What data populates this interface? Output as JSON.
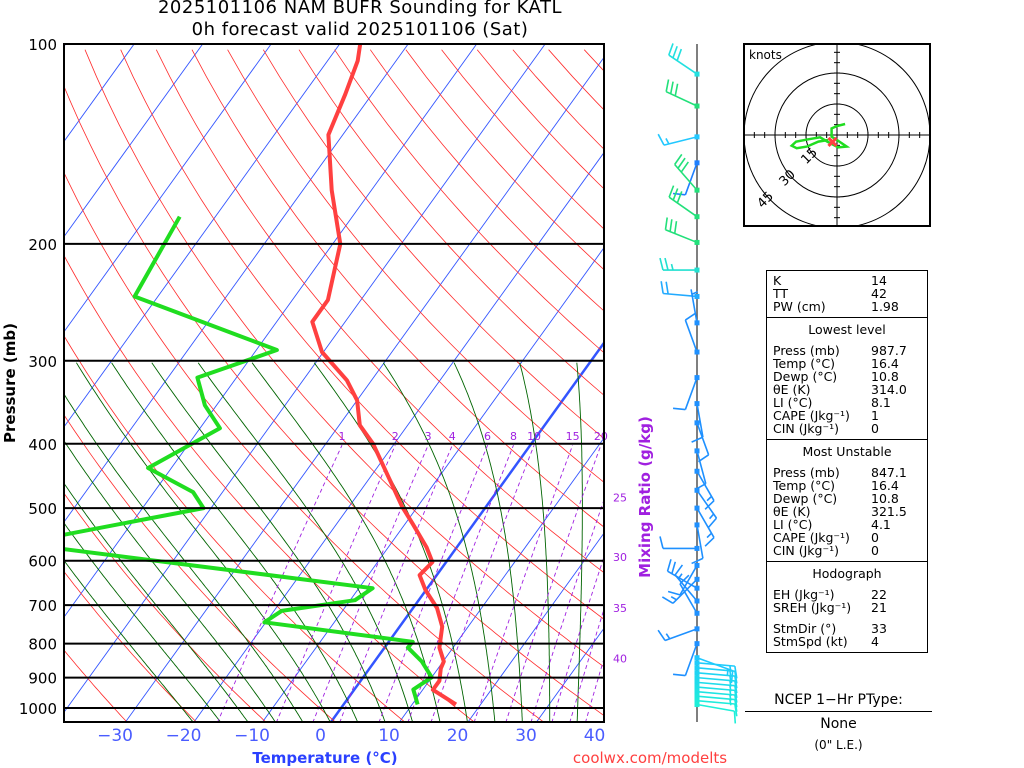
{
  "header": {
    "title_line1": "2025101106 NAM BUFR Sounding for KATL",
    "title_line2": "0h forecast valid 2025101106 (Sat)"
  },
  "colors": {
    "temperature": "#ff4040",
    "dewpoint": "#20dd20",
    "isotherm": "#3355ff",
    "dry_adiabat": "#ff2a2a",
    "moist_adiabat": "#006400",
    "mixing_ratio": "#a020e0",
    "credit": "#ff4040"
  },
  "chart_data": {
    "type": "skew-t",
    "title": "2025101106 NAM BUFR Sounding for KATL",
    "ylabel": "Pressure (mb)",
    "xlabel": "Temperature (°C)",
    "secondary_label": "Mixing Ratio (g/kg)",
    "pressure_ticks": [
      "100",
      "200",
      "300",
      "400",
      "500",
      "600",
      "700",
      "800",
      "900",
      "1000"
    ],
    "pressure_tick_values": [
      100,
      200,
      300,
      400,
      500,
      600,
      700,
      800,
      900,
      1000
    ],
    "temperature_ticks": [
      "−30",
      "−20",
      "−10",
      "0",
      "10",
      "20",
      "30",
      "40"
    ],
    "temperature_tick_values": [
      -30,
      -20,
      -10,
      0,
      10,
      20,
      30,
      40
    ],
    "pressure_range": [
      100,
      1050
    ],
    "mixing_ratio_lines": [
      "1",
      "2",
      "3",
      "4",
      "6",
      "8",
      "10",
      "15",
      "20",
      "25",
      "30",
      "35",
      "40"
    ],
    "temperature_profile": [
      [
        987.7,
        16.4
      ],
      [
        939,
        11.5
      ],
      [
        910,
        11.5
      ],
      [
        872,
        10.4
      ],
      [
        851,
        10.1
      ],
      [
        811,
        8.0
      ],
      [
        754,
        6.2
      ],
      [
        707,
        3.5
      ],
      [
        664,
        -0.1
      ],
      [
        631,
        -2.5
      ],
      [
        603,
        -2.0
      ],
      [
        573,
        -4.4
      ],
      [
        528,
        -8.9
      ],
      [
        498,
        -12.2
      ],
      [
        454,
        -16.8
      ],
      [
        400,
        -23.1
      ],
      [
        375,
        -27.0
      ],
      [
        344,
        -30.0
      ],
      [
        321,
        -33.6
      ],
      [
        291,
        -40.2
      ],
      [
        262,
        -44.8
      ],
      [
        243,
        -44.8
      ],
      [
        200,
        -48.9
      ],
      [
        166,
        -55.8
      ],
      [
        137,
        -62.1
      ],
      [
        119,
        -63.9
      ],
      [
        106,
        -65.6
      ],
      [
        100,
        -67.0
      ]
    ],
    "dewpoint_profile": [
      [
        987.7,
        10.8
      ],
      [
        958,
        9.5
      ],
      [
        938,
        8.6
      ],
      [
        899,
        10.0
      ],
      [
        851,
        6.9
      ],
      [
        811,
        3.4
      ],
      [
        795,
        3.5
      ],
      [
        743,
        -20.2
      ],
      [
        714,
        -18.9
      ],
      [
        688,
        -9.3
      ],
      [
        660,
        -8.0
      ],
      [
        572,
        -60
      ],
      [
        558,
        -62
      ],
      [
        500,
        -41.1
      ],
      [
        473,
        -44.3
      ],
      [
        435,
        -53.4
      ],
      [
        379,
        -47.1
      ],
      [
        350,
        -51.7
      ],
      [
        318,
        -55.7
      ],
      [
        289,
        -47.0
      ],
      [
        240,
        -73.4
      ],
      [
        182,
        -75.2
      ]
    ],
    "winds": [
      [
        111,
        304,
        30
      ],
      [
        124,
        295,
        30
      ],
      [
        138,
        256,
        15
      ],
      [
        151,
        200,
        10
      ],
      [
        166,
        319,
        30
      ],
      [
        182,
        305,
        30
      ],
      [
        199,
        292,
        30
      ],
      [
        219,
        270,
        25
      ],
      [
        240,
        275,
        20
      ],
      [
        263,
        350,
        5
      ],
      [
        291,
        340,
        10
      ],
      [
        318,
        200,
        10
      ],
      [
        348,
        170,
        10
      ],
      [
        372,
        160,
        10
      ],
      [
        410,
        165,
        10
      ],
      [
        440,
        150,
        15
      ],
      [
        470,
        145,
        15
      ],
      [
        500,
        150,
        15
      ],
      [
        530,
        170,
        10
      ],
      [
        575,
        270,
        10
      ],
      [
        610,
        210,
        10
      ],
      [
        640,
        225,
        15
      ],
      [
        660,
        300,
        20
      ],
      [
        690,
        320,
        15
      ],
      [
        720,
        330,
        10
      ],
      [
        760,
        250,
        15
      ],
      [
        800,
        200,
        10
      ],
      [
        840,
        110,
        15
      ],
      [
        855,
        95,
        15
      ],
      [
        870,
        95,
        15
      ],
      [
        885,
        95,
        15
      ],
      [
        900,
        95,
        15
      ],
      [
        915,
        95,
        15
      ],
      [
        930,
        95,
        15
      ],
      [
        945,
        95,
        15
      ],
      [
        960,
        95,
        15
      ],
      [
        975,
        95,
        10
      ],
      [
        988,
        100,
        10
      ]
    ],
    "hodograph": {
      "label": "knots",
      "ring_labels": [
        "15",
        "30",
        "45"
      ],
      "ring_values": [
        15,
        30,
        45
      ],
      "uv": [
        [
          3.9,
          5.3
        ],
        [
          0,
          4.3
        ],
        [
          -2.6,
          3.2
        ],
        [
          -2.6,
          -0.8
        ],
        [
          0,
          -2.4
        ],
        [
          4.7,
          -5.6
        ],
        [
          0.6,
          -6
        ],
        [
          -4.7,
          -3.2
        ],
        [
          -8.2,
          -1.1
        ],
        [
          -13.9,
          -2.1
        ],
        [
          -19.8,
          -3.2
        ],
        [
          -21.9,
          -5.2
        ],
        [
          -19.5,
          -6.4
        ],
        [
          -14.6,
          -5.6
        ],
        [
          -9,
          -3.2
        ],
        [
          -4.2,
          -2.4
        ]
      ],
      "storm_motion": {
        "dir": 33,
        "speed": 4
      }
    }
  },
  "stats": {
    "indices": [
      {
        "label": "K",
        "value": "14"
      },
      {
        "label": "TT",
        "value": "42"
      },
      {
        "label": "PW (cm)",
        "value": "1.98"
      }
    ],
    "lowest": {
      "title": "Lowest level",
      "rows": [
        {
          "label": "Press (mb)",
          "value": "987.7"
        },
        {
          "label": "Temp (°C)",
          "value": "16.4"
        },
        {
          "label": "Dewp (°C)",
          "value": "10.8"
        },
        {
          "label": "θE (K)",
          "value": "314.0"
        },
        {
          "label": "LI (°C)",
          "value": "8.1"
        },
        {
          "label": "CAPE (Jkg⁻¹)",
          "value": "1"
        },
        {
          "label": "CIN (Jkg⁻¹)",
          "value": "0"
        }
      ]
    },
    "unstable": {
      "title": "Most Unstable",
      "rows": [
        {
          "label": "Press (mb)",
          "value": "847.1"
        },
        {
          "label": "Temp (°C)",
          "value": "16.4"
        },
        {
          "label": "Dewp (°C)",
          "value": "10.8"
        },
        {
          "label": "θE (K)",
          "value": "321.5"
        },
        {
          "label": "LI (°C)",
          "value": "4.1"
        },
        {
          "label": "CAPE (Jkg⁻¹)",
          "value": "0"
        },
        {
          "label": "CIN (Jkg⁻¹)",
          "value": "0"
        }
      ]
    },
    "hodo": {
      "title": "Hodograph",
      "rows": [
        {
          "label": "EH (Jkg⁻¹)",
          "value": "22"
        },
        {
          "label": "SREH (Jkg⁻¹)",
          "value": "21"
        },
        {
          "label": "StmDir (°)",
          "value": "33"
        },
        {
          "label": "StmSpd (kt)",
          "value": "4"
        }
      ]
    }
  },
  "ptype": {
    "header": "NCEP 1−Hr PType:",
    "value": "None",
    "le": "(0\" L.E.)"
  },
  "credit": "coolwx.com/modelts"
}
